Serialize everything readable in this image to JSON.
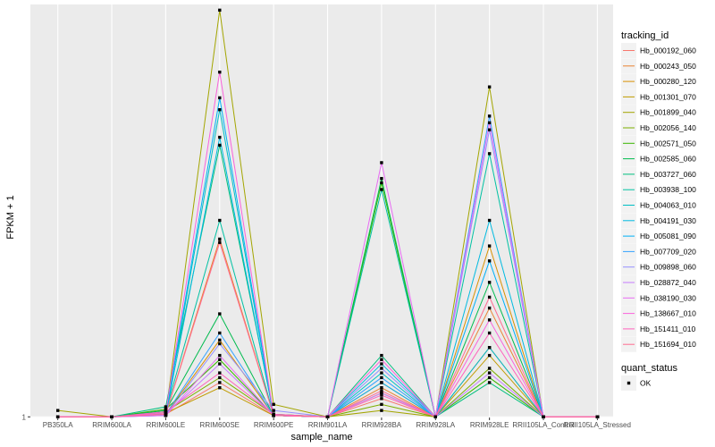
{
  "chart_data": {
    "type": "line",
    "title": "",
    "xlabel": "sample_name",
    "ylabel": "FPKM + 1",
    "y_scale": "log",
    "y_ticks": [
      1
    ],
    "y_tick_labels": [
      "1"
    ],
    "ylim": [
      0.995,
      23.5
    ],
    "grid": true,
    "legend_position": "right",
    "categories": [
      "PB350LA",
      "RRIM600LA",
      "RRIM600LE",
      "RRIM600SE",
      "RRIM600PE",
      "RRIM901LA",
      "RRIM928BA",
      "RRIM928LA",
      "RRIM928LE",
      "RRII105LA_Control",
      "RRII105LA_Stressed"
    ],
    "legend_title": "tracking_id",
    "series": [
      {
        "name": "Hb_000192_060",
        "color": "#F8766D",
        "values": [
          1,
          1,
          1.02,
          1.3,
          1.01,
          1,
          1.15,
          1,
          1.7,
          1,
          1
        ]
      },
      {
        "name": "Hb_000243_050",
        "color": "#EA8331",
        "values": [
          1,
          1,
          1.02,
          3.9,
          1.01,
          1,
          1.25,
          1,
          2.3,
          1,
          1
        ]
      },
      {
        "name": "Hb_000280_120",
        "color": "#D89000",
        "values": [
          1,
          1,
          1.02,
          1.8,
          1.01,
          1,
          1.3,
          1,
          3.7,
          1,
          1
        ]
      },
      {
        "name": "Hb_001301_070",
        "color": "#C09B00",
        "values": [
          1,
          1,
          1.03,
          1.25,
          1.01,
          1,
          1.2,
          1,
          1.6,
          1,
          1
        ]
      },
      {
        "name": "Hb_001899_040",
        "color": "#A3A500",
        "values": [
          1.05,
          1,
          1.02,
          22.5,
          1.1,
          1,
          1.05,
          1,
          12.5,
          1,
          1
        ]
      },
      {
        "name": "Hb_002056_140",
        "color": "#7CAE00",
        "values": [
          1,
          1,
          1.04,
          1.35,
          1.02,
          1,
          1.1,
          1,
          1.45,
          1,
          1
        ]
      },
      {
        "name": "Hb_002571_050",
        "color": "#39B600",
        "values": [
          1,
          1,
          1.06,
          1.55,
          1.01,
          1,
          6.0,
          1,
          1.35,
          1,
          1
        ]
      },
      {
        "name": "Hb_002585_060",
        "color": "#00BB4E",
        "values": [
          1,
          1,
          1.05,
          2.2,
          1.01,
          1,
          6.2,
          1,
          2.8,
          1,
          1
        ]
      },
      {
        "name": "Hb_003727_060",
        "color": "#00BF7D",
        "values": [
          1,
          1,
          1.08,
          8.0,
          1.02,
          1,
          1.6,
          1,
          1.3,
          1,
          1
        ]
      },
      {
        "name": "Hb_003938_100",
        "color": "#00C1A3",
        "values": [
          1,
          1,
          1.04,
          4.5,
          1.01,
          1,
          5.7,
          1,
          7.5,
          1,
          1
        ]
      },
      {
        "name": "Hb_004063_010",
        "color": "#00BFC4",
        "values": [
          1,
          1,
          1.02,
          10.5,
          1.01,
          1,
          1.4,
          1,
          1.7,
          1,
          1
        ]
      },
      {
        "name": "Hb_004191_030",
        "color": "#00BAE0",
        "values": [
          1,
          1,
          1.01,
          8.5,
          1.01,
          1,
          1.5,
          1,
          4.5,
          1,
          1
        ]
      },
      {
        "name": "Hb_005081_090",
        "color": "#00B0F6",
        "values": [
          1,
          1,
          1.02,
          11.5,
          1.01,
          1,
          1.3,
          1,
          3.3,
          1,
          1
        ]
      },
      {
        "name": "Hb_007709_020",
        "color": "#35A2FF",
        "values": [
          1,
          1,
          1.02,
          1.9,
          1.01,
          1,
          1.35,
          1,
          10.0,
          1,
          1
        ]
      },
      {
        "name": "Hb_009898_060",
        "color": "#9590FF",
        "values": [
          1,
          1,
          1.01,
          1.75,
          1.05,
          1,
          1.45,
          1,
          9.0,
          1,
          1
        ]
      },
      {
        "name": "Hb_028872_040",
        "color": "#C77CFF",
        "values": [
          1,
          1,
          1.02,
          1.5,
          1.01,
          1,
          1.2,
          1,
          1.4,
          1,
          1
        ]
      },
      {
        "name": "Hb_038190_030",
        "color": "#E76BF3",
        "values": [
          1,
          1,
          1.01,
          1.6,
          1.01,
          1,
          7.0,
          1,
          9.5,
          1,
          1
        ]
      },
      {
        "name": "Hb_138667_010",
        "color": "#FA62DB",
        "values": [
          1,
          1,
          1.03,
          14.0,
          1.01,
          1,
          1.55,
          1,
          2.1,
          1,
          1
        ]
      },
      {
        "name": "Hb_151411_010",
        "color": "#FF62BC",
        "values": [
          1,
          1,
          1.04,
          1.4,
          1.02,
          1,
          1.18,
          1,
          1.9,
          1,
          1
        ]
      },
      {
        "name": "Hb_151694_010",
        "color": "#FF6C91",
        "values": [
          1,
          1,
          1.02,
          3.8,
          1.01,
          1,
          1.22,
          1,
          2.5,
          1,
          1
        ]
      }
    ],
    "legend2_title": "quant_status",
    "legend2_items": [
      {
        "label": "OK",
        "shape": "square-point"
      }
    ]
  }
}
